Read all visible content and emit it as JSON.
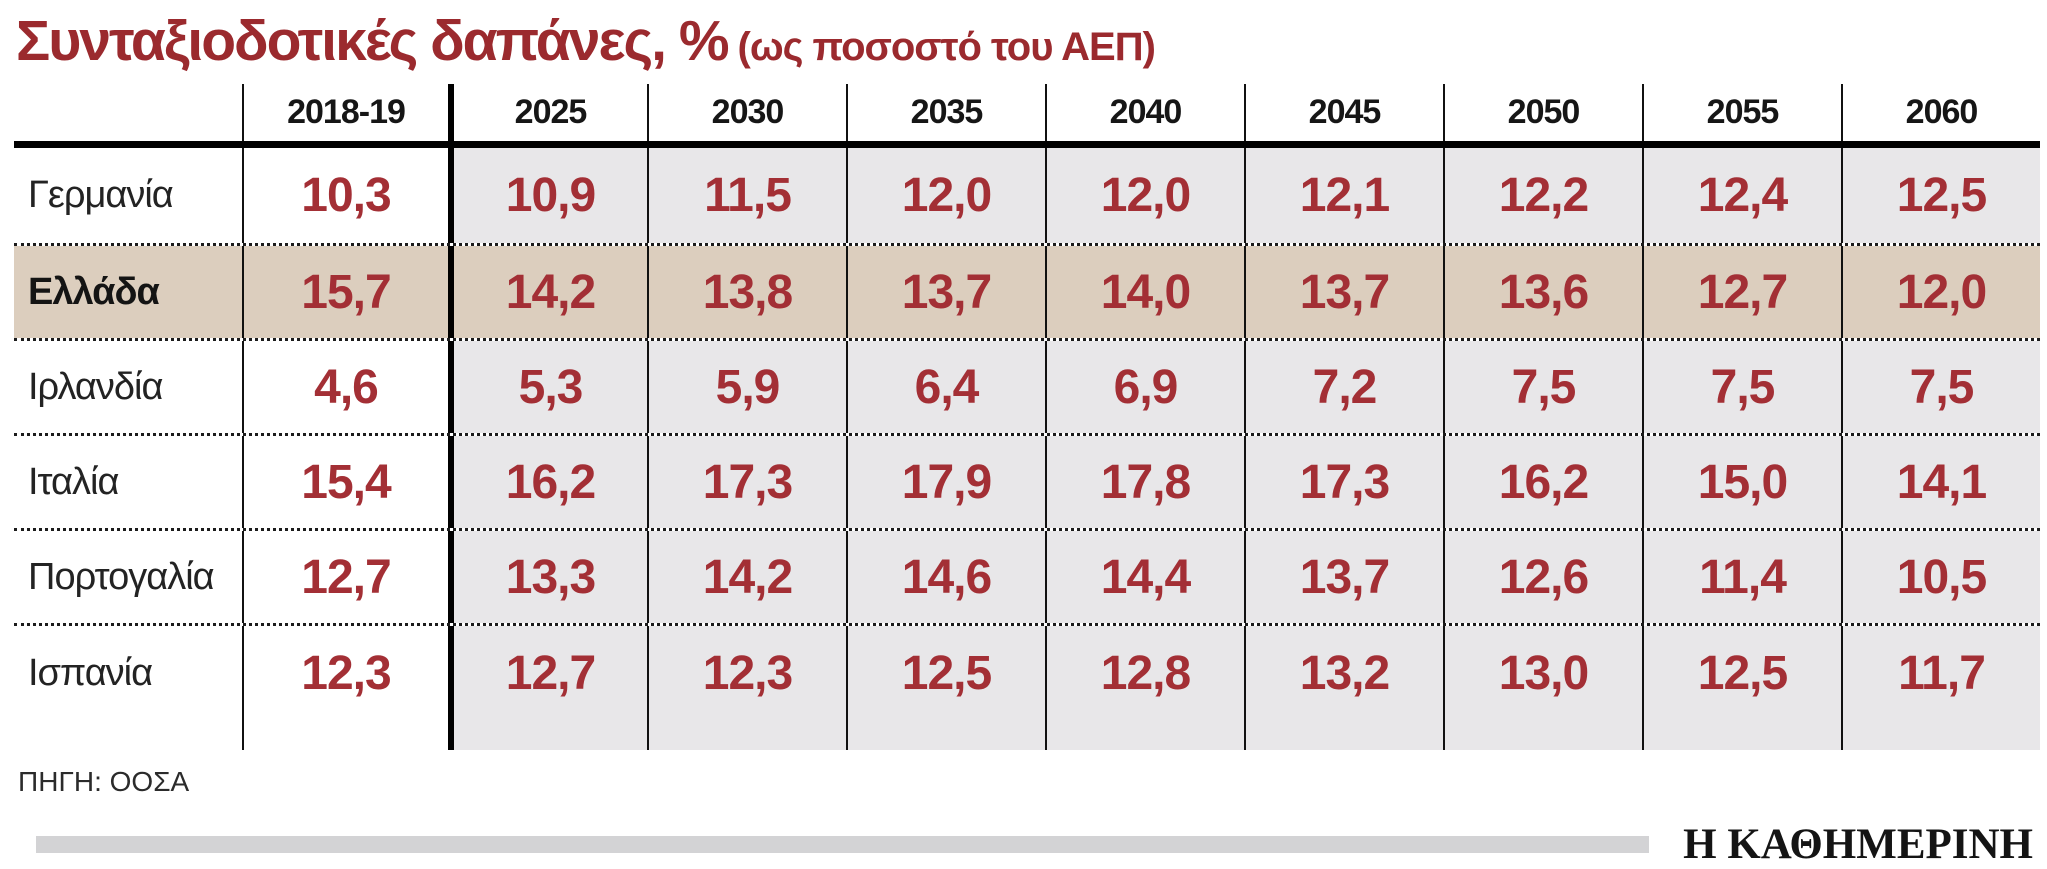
{
  "title": {
    "main": "Συνταξιοδοτικές δαπάνες, %",
    "sub": "(ως ποσοστό του ΑΕΠ)"
  },
  "table": {
    "columns": [
      "2018-19",
      "2025",
      "2030",
      "2035",
      "2040",
      "2045",
      "2050",
      "2055",
      "2060"
    ],
    "rows": [
      {
        "label": "Γερμανία",
        "highlight": false,
        "values": [
          "10,3",
          "10,9",
          "11,5",
          "12,0",
          "12,0",
          "12,1",
          "12,2",
          "12,4",
          "12,5"
        ]
      },
      {
        "label": "Ελλάδα",
        "highlight": true,
        "values": [
          "15,7",
          "14,2",
          "13,8",
          "13,7",
          "14,0",
          "13,7",
          "13,6",
          "12,7",
          "12,0"
        ]
      },
      {
        "label": "Ιρλανδία",
        "highlight": false,
        "values": [
          "4,6",
          "5,3",
          "5,9",
          "6,4",
          "6,9",
          "7,2",
          "7,5",
          "7,5",
          "7,5"
        ]
      },
      {
        "label": "Ιταλία",
        "highlight": false,
        "values": [
          "15,4",
          "16,2",
          "17,3",
          "17,9",
          "17,8",
          "17,3",
          "16,2",
          "15,0",
          "14,1"
        ]
      },
      {
        "label": "Πορτογαλία",
        "highlight": false,
        "values": [
          "12,7",
          "13,3",
          "14,2",
          "14,6",
          "14,4",
          "13,7",
          "12,6",
          "11,4",
          "10,5"
        ]
      },
      {
        "label": "Ισπανία",
        "highlight": false,
        "values": [
          "12,3",
          "12,7",
          "12,3",
          "12,5",
          "12,8",
          "13,2",
          "13,0",
          "12,5",
          "11,7"
        ]
      }
    ]
  },
  "source": "ΠΗΓΗ: ΟΟΣΑ",
  "branding": "Η ΚΑΘΗΜΕΡΙΝΗ",
  "colors": {
    "title_red": "#9b2a2e",
    "value_red": "#a32f35",
    "shade_gray": "#e8e7e9",
    "highlight_beige": "#dccebe",
    "divider_gray": "#d3d3d5",
    "line_black": "#111111"
  },
  "chart_data": {
    "type": "table",
    "title": "Συνταξιοδοτικές δαπάνες, % (ως ποσοστό του ΑΕΠ)",
    "categories": [
      "2018-19",
      "2025",
      "2030",
      "2035",
      "2040",
      "2045",
      "2050",
      "2055",
      "2060"
    ],
    "series": [
      {
        "name": "Γερμανία",
        "values": [
          10.3,
          10.9,
          11.5,
          12.0,
          12.0,
          12.1,
          12.2,
          12.4,
          12.5
        ]
      },
      {
        "name": "Ελλάδα",
        "values": [
          15.7,
          14.2,
          13.8,
          13.7,
          14.0,
          13.7,
          13.6,
          12.7,
          12.0
        ]
      },
      {
        "name": "Ιρλανδία",
        "values": [
          4.6,
          5.3,
          5.9,
          6.4,
          6.9,
          7.2,
          7.5,
          7.5,
          7.5
        ]
      },
      {
        "name": "Ιταλία",
        "values": [
          15.4,
          16.2,
          17.3,
          17.9,
          17.8,
          17.3,
          16.2,
          15.0,
          14.1
        ]
      },
      {
        "name": "Πορτογαλία",
        "values": [
          12.7,
          13.3,
          14.2,
          14.6,
          14.4,
          13.7,
          12.6,
          11.4,
          10.5
        ]
      },
      {
        "name": "Ισπανία",
        "values": [
          12.3,
          12.7,
          12.3,
          12.5,
          12.8,
          13.2,
          13.0,
          12.5,
          11.7
        ]
      }
    ],
    "source": "ΠΗΓΗ: ΟΟΣΑ",
    "notes": "Highlighted row: Ελλάδα (beige). Columns 2025-2060 shaded gray. Values use Greek decimal comma."
  }
}
